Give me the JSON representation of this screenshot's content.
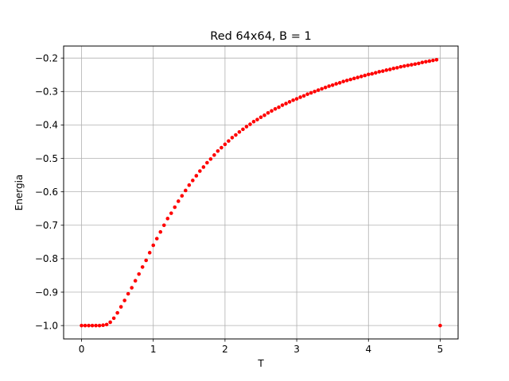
{
  "chart_data": {
    "type": "scatter",
    "title": "Red 64x64, B = 1",
    "xlabel": "T",
    "ylabel": "Energia",
    "xlim": [
      -0.25,
      5.25
    ],
    "ylim": [
      -1.04,
      -0.164
    ],
    "grid": true,
    "marker_color": "#ff0000",
    "x_ticks": [
      0,
      1,
      2,
      3,
      4,
      5
    ],
    "x_tick_labels": [
      "0",
      "1",
      "2",
      "3",
      "4",
      "5"
    ],
    "y_ticks": [
      -1.0,
      -0.9,
      -0.8,
      -0.7,
      -0.6,
      -0.5,
      -0.4,
      -0.3,
      -0.2
    ],
    "y_tick_labels": [
      "−1.0",
      "−0.9",
      "−0.8",
      "−0.7",
      "−0.6",
      "−0.5",
      "−0.4",
      "−0.3",
      "−0.2"
    ],
    "series": [
      {
        "x": [
          0,
          0.05,
          0.1,
          0.15,
          0.2,
          0.25,
          0.3,
          0.35,
          0.4,
          0.45,
          0.5,
          0.55,
          0.6,
          0.65,
          0.7,
          0.75,
          0.8,
          0.85,
          0.9,
          0.95,
          1.0,
          1.05,
          1.1,
          1.15,
          1.2,
          1.25,
          1.3,
          1.35,
          1.4,
          1.45,
          1.5,
          1.55,
          1.6,
          1.65,
          1.7,
          1.75,
          1.8,
          1.85,
          1.9,
          1.95,
          2.0,
          2.05,
          2.1,
          2.15,
          2.2,
          2.25,
          2.3,
          2.35,
          2.4,
          2.45,
          2.5,
          2.55,
          2.6,
          2.65,
          2.7,
          2.75,
          2.8,
          2.85,
          2.9,
          2.95,
          3.0,
          3.05,
          3.1,
          3.15,
          3.2,
          3.25,
          3.3,
          3.35,
          3.4,
          3.45,
          3.5,
          3.55,
          3.6,
          3.65,
          3.7,
          3.75,
          3.8,
          3.85,
          3.9,
          3.95,
          4.0,
          4.05,
          4.1,
          4.15,
          4.2,
          4.25,
          4.3,
          4.35,
          4.4,
          4.45,
          4.5,
          4.55,
          4.6,
          4.65,
          4.7,
          4.75,
          4.8,
          4.85,
          4.9,
          4.95,
          5.0
        ],
        "y": [
          -1.0,
          -1.0,
          -1.0,
          -1.0,
          -1.0,
          -1.0,
          -0.999,
          -0.997,
          -0.99,
          -0.978,
          -0.962,
          -0.944,
          -0.925,
          -0.905,
          -0.887,
          -0.866,
          -0.846,
          -0.825,
          -0.805,
          -0.782,
          -0.76,
          -0.74,
          -0.72,
          -0.7,
          -0.68,
          -0.664,
          -0.646,
          -0.628,
          -0.612,
          -0.596,
          -0.58,
          -0.566,
          -0.552,
          -0.538,
          -0.526,
          -0.513,
          -0.502,
          -0.49,
          -0.478,
          -0.468,
          -0.458,
          -0.448,
          -0.438,
          -0.43,
          -0.421,
          -0.413,
          -0.405,
          -0.398,
          -0.39,
          -0.384,
          -0.377,
          -0.371,
          -0.364,
          -0.358,
          -0.352,
          -0.347,
          -0.341,
          -0.336,
          -0.331,
          -0.326,
          -0.322,
          -0.317,
          -0.313,
          -0.308,
          -0.304,
          -0.3,
          -0.296,
          -0.292,
          -0.288,
          -0.284,
          -0.281,
          -0.277,
          -0.274,
          -0.27,
          -0.267,
          -0.264,
          -0.261,
          -0.258,
          -0.255,
          -0.252,
          -0.249,
          -0.247,
          -0.244,
          -0.241,
          -0.239,
          -0.236,
          -0.234,
          -0.231,
          -0.229,
          -0.226,
          -0.224,
          -0.222,
          -0.22,
          -0.218,
          -0.216,
          -0.213,
          -0.211,
          -0.209,
          -0.207,
          -0.205,
          -1.0
        ]
      }
    ]
  }
}
